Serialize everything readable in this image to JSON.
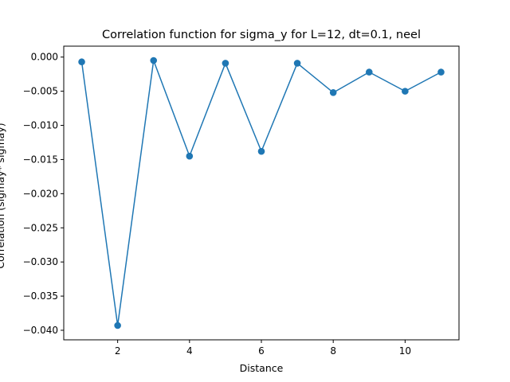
{
  "chart_data": {
    "type": "line",
    "title": "Correlation function for sigma_y for L=12, dt=0.1, neel",
    "xlabel": "Distance",
    "ylabel": "Correlation (sigmay* sigmay)",
    "xlim": [
      0.5,
      11.5
    ],
    "ylim": [
      -0.0414,
      0.0016
    ],
    "x_ticks": [
      2,
      4,
      6,
      8,
      10
    ],
    "y_ticks": [
      0.0,
      -0.005,
      -0.01,
      -0.015,
      -0.02,
      -0.025,
      -0.03,
      -0.035,
      -0.04
    ],
    "y_tick_labels": [
      "0.000",
      "−0.005",
      "−0.010",
      "−0.015",
      "−0.020",
      "−0.025",
      "−0.030",
      "−0.035",
      "−0.040"
    ],
    "grid": false,
    "series": [
      {
        "x": [
          1,
          2,
          3,
          4,
          5,
          6,
          7,
          8,
          9,
          10,
          11
        ],
        "values": [
          -0.0007,
          -0.0393,
          -0.0005,
          -0.0145,
          -0.0009,
          -0.0138,
          -0.0009,
          -0.0052,
          -0.0022,
          -0.005,
          -0.0022
        ],
        "color": "#1f77b4",
        "marker": "circle"
      }
    ]
  }
}
